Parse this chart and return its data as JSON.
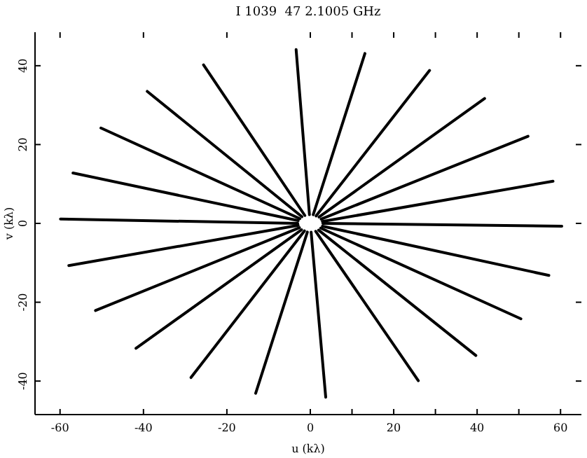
{
  "chart_data": {
    "type": "line",
    "title": "I 1039  47 2.1005 GHz",
    "xlabel": "u (kλ)",
    "ylabel": "v (kλ)",
    "xlim": [
      -66,
      65
    ],
    "ylim": [
      -48.5,
      48.5
    ],
    "xticks": [
      -60,
      -40,
      -20,
      0,
      20,
      40,
      60,
      {
        "value": 10,
        "label": null
      },
      {
        "value": 30,
        "label": null
      },
      {
        "value": 50,
        "label": null
      }
    ],
    "yticks": [
      -40,
      -20,
      0,
      20,
      40
    ],
    "grid": false,
    "marker": "none",
    "line_style": "solid",
    "series": [
      {
        "color": "#000000",
        "x": [
          -0.2,
          -3.4
        ],
        "values": [
          2.2,
          44.1
        ]
      },
      {
        "color": "#000000",
        "x": [
          0.7,
          13.1
        ],
        "values": [
          2.2,
          43.1
        ]
      },
      {
        "color": "#000000",
        "x": [
          1.4,
          28.6
        ],
        "values": [
          1.9,
          38.8
        ]
      },
      {
        "color": "#000000",
        "x": [
          2.1,
          41.8
        ],
        "values": [
          1.6,
          31.7
        ]
      },
      {
        "color": "#000000",
        "x": [
          2.6,
          52.2
        ],
        "values": [
          1.1,
          22.1
        ]
      },
      {
        "color": "#000000",
        "x": [
          2.9,
          58.2
        ],
        "values": [
          0.5,
          10.7
        ]
      },
      {
        "color": "#000000",
        "x": [
          3.0,
          60.3
        ],
        "values": [
          0,
          -0.7
        ]
      },
      {
        "color": "#000000",
        "x": [
          2.9,
          57.2
        ],
        "values": [
          -0.7,
          -13.2
        ]
      },
      {
        "color": "#000000",
        "x": [
          2.5,
          50.5
        ],
        "values": [
          -1.2,
          -24.2
        ]
      },
      {
        "color": "#000000",
        "x": [
          2.0,
          39.7
        ],
        "values": [
          -1.7,
          -33.5
        ]
      },
      {
        "color": "#000000",
        "x": [
          1.3,
          25.9
        ],
        "values": [
          -2.0,
          -39.9
        ]
      },
      {
        "color": "#000000",
        "x": [
          0.2,
          3.7
        ],
        "values": [
          -2.2,
          -44.1
        ]
      },
      {
        "color": "#000000",
        "x": [
          -0.7,
          -13.1
        ],
        "values": [
          -2.2,
          -43.1
        ]
      },
      {
        "color": "#000000",
        "x": [
          -1.4,
          -28.6
        ],
        "values": [
          -1.9,
          -39.1
        ]
      },
      {
        "color": "#000000",
        "x": [
          -2.1,
          -41.8
        ],
        "values": [
          -1.6,
          -31.7
        ]
      },
      {
        "color": "#000000",
        "x": [
          -2.6,
          -51.5
        ],
        "values": [
          -1.1,
          -22.1
        ]
      },
      {
        "color": "#000000",
        "x": [
          -2.9,
          -57.9
        ],
        "values": [
          -0.5,
          -10.7
        ]
      },
      {
        "color": "#000000",
        "x": [
          -3.0,
          -59.9
        ],
        "values": [
          0,
          1.1
        ]
      },
      {
        "color": "#000000",
        "x": [
          -2.9,
          -56.9
        ],
        "values": [
          0.7,
          12.8
        ]
      },
      {
        "color": "#000000",
        "x": [
          -2.5,
          -50.2
        ],
        "values": [
          1.2,
          24.2
        ]
      },
      {
        "color": "#000000",
        "x": [
          -2.0,
          -39.1
        ],
        "values": [
          1.7,
          33.5
        ]
      },
      {
        "color": "#000000",
        "x": [
          -1.3,
          -25.6
        ],
        "values": [
          2.0,
          40.2
        ]
      }
    ]
  }
}
